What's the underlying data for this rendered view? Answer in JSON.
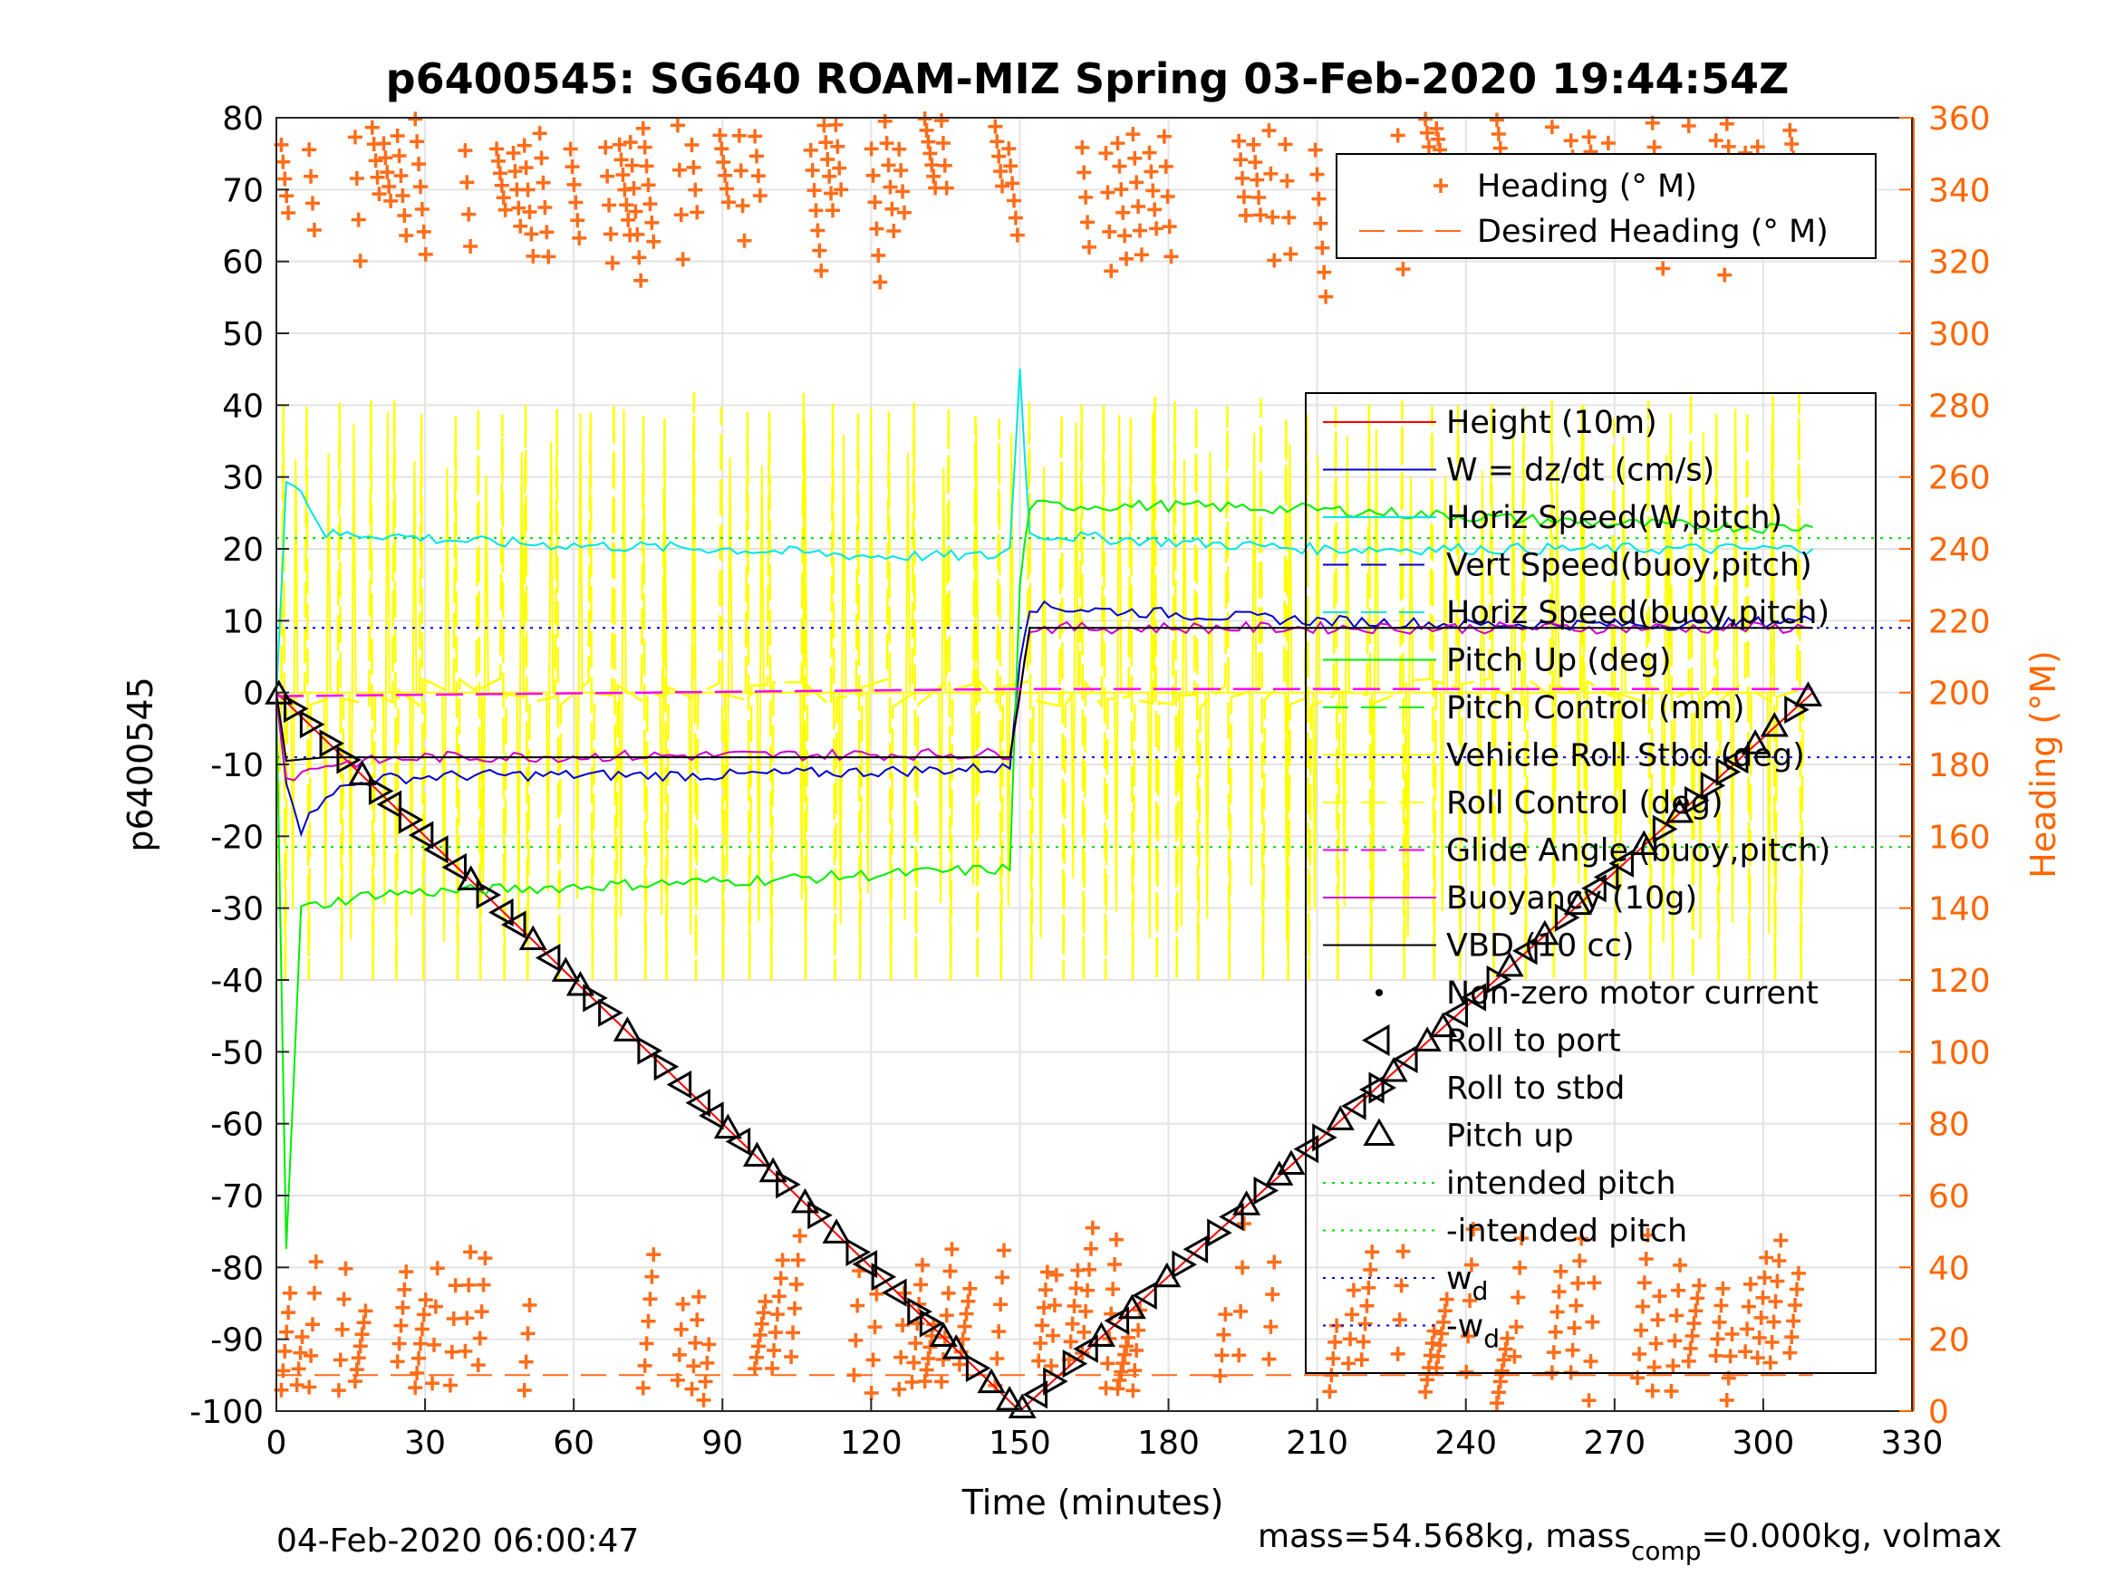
{
  "chart_data": {
    "type": "line",
    "title": "p6400545: SG640 ROAM-MIZ Spring 03-Feb-2020 19:44:54Z",
    "xlabel": "Time (minutes)",
    "ylabel_left": "p6400545",
    "ylabel_right": "Heading (°M)",
    "xlim": [
      0,
      330
    ],
    "ylim_left": [
      -100,
      80
    ],
    "ylim_right": [
      0,
      360
    ],
    "x_ticks": [
      "0",
      "30",
      "60",
      "90",
      "120",
      "150",
      "180",
      "210",
      "240",
      "270",
      "300",
      "330"
    ],
    "y_ticks_left": [
      "80",
      "70",
      "60",
      "50",
      "40",
      "30",
      "20",
      "10",
      "0",
      "-10",
      "-20",
      "-30",
      "-40",
      "-50",
      "-60",
      "-70",
      "-80",
      "-90",
      "-100"
    ],
    "y_ticks_right": [
      "360",
      "340",
      "320",
      "300",
      "280",
      "260",
      "240",
      "220",
      "200",
      "180",
      "160",
      "140",
      "120",
      "100",
      "80",
      "60",
      "40",
      "20",
      "0"
    ],
    "grid": true,
    "colors": {
      "height": "#ff0000",
      "w": "#0000cc",
      "horiz_speed_w": "#00e5e5",
      "pitch": "#00ee00",
      "yellow": "#ffff00",
      "glide": "#ff00ff",
      "buoyancy": "#cc00cc",
      "vbd": "#000000",
      "heading": "#ff6d1a",
      "intended": "#00dd00",
      "wd": "#0000ff"
    },
    "heading_legend": [
      {
        "label": "Heading (° M)",
        "style": "plus-marker"
      },
      {
        "label": "Desired Heading (° M)",
        "style": "dashed"
      }
    ],
    "legend": [
      {
        "label": "Height (10m)",
        "style": "line"
      },
      {
        "label": "W = dz/dt (cm/s)",
        "style": "line"
      },
      {
        "label": "Horiz Speed(W,pitch)",
        "style": "line"
      },
      {
        "label": "Vert Speed(buoy,pitch)",
        "style": "dashed"
      },
      {
        "label": "Horiz Speed(buoy,pitch)",
        "style": "dashed"
      },
      {
        "label": "Pitch Up (deg)",
        "style": "line"
      },
      {
        "label": "Pitch Control (mm)",
        "style": "dashed"
      },
      {
        "label": "Vehicle Roll Stbd (deg)",
        "style": "line"
      },
      {
        "label": "Roll Control (deg)",
        "style": "dashed"
      },
      {
        "label": "Glide Angle (buoy,pitch)",
        "style": "dashed"
      },
      {
        "label": "Buoyancy (10g)",
        "style": "line"
      },
      {
        "label": "VBD (10 cc)",
        "style": "line"
      },
      {
        "label": "Non-zero motor current",
        "style": "dot"
      },
      {
        "label": "Roll to port",
        "style": "tri-left"
      },
      {
        "label": "Roll to stbd",
        "style": "tri-right"
      },
      {
        "label": "Pitch up",
        "style": "tri-up"
      },
      {
        "label": "intended pitch",
        "style": "dotted"
      },
      {
        "label": "-intended pitch",
        "style": "dotted"
      },
      {
        "label": "w",
        "sub": "d",
        "style": "dotted"
      },
      {
        "label": "-w",
        "sub": "d",
        "style": "dotted"
      }
    ],
    "series": [
      {
        "name": "Height (10m)",
        "axis": "left",
        "x": [
          0,
          150,
          310
        ],
        "y": [
          0,
          -100,
          0
        ]
      },
      {
        "name": "W = dz/dt (cm/s)",
        "axis": "left",
        "x": [
          0,
          2,
          5,
          10,
          20,
          40,
          60,
          90,
          120,
          148,
          150,
          152,
          180,
          210,
          240,
          270,
          290,
          305,
          310
        ],
        "y": [
          0,
          -12,
          -19,
          -14,
          -12,
          -11.5,
          -11.5,
          -11.5,
          -11,
          -10.5,
          5,
          12,
          11,
          10,
          9.5,
          9.5,
          9.5,
          10,
          10
        ]
      },
      {
        "name": "Horiz Speed(W,pitch)",
        "axis": "left",
        "x": [
          0,
          2,
          5,
          10,
          20,
          40,
          60,
          90,
          120,
          145,
          148,
          150,
          152,
          180,
          210,
          240,
          270,
          300,
          310
        ],
        "y": [
          0,
          30,
          28,
          22,
          22,
          21,
          20.5,
          20,
          19,
          19,
          20,
          45,
          22,
          21,
          20,
          20,
          20,
          20,
          20
        ]
      },
      {
        "name": "Pitch Up (deg)",
        "axis": "left",
        "x": [
          0,
          2,
          5,
          20,
          60,
          100,
          148,
          150,
          152,
          180,
          210,
          240,
          270,
          300,
          310
        ],
        "y": [
          0,
          -78,
          -30,
          -28,
          -27,
          -26,
          -24.5,
          15,
          26,
          26,
          25.5,
          24.5,
          23.5,
          23,
          23
        ]
      },
      {
        "name": "Buoyancy (10g)",
        "axis": "left",
        "x": [
          0,
          2,
          10,
          30,
          148,
          150,
          152,
          310
        ],
        "y": [
          0,
          -12,
          -10,
          -9,
          -8.5,
          0,
          9,
          9
        ]
      },
      {
        "name": "VBD (10 cc)",
        "axis": "left",
        "x": [
          0,
          2,
          10,
          30,
          148,
          150,
          152,
          310
        ],
        "y": [
          0,
          -9.5,
          -9,
          -9,
          -9,
          0,
          9,
          9
        ]
      },
      {
        "name": "Glide Angle (buoy,pitch)",
        "axis": "left",
        "x": [
          0,
          150,
          310
        ],
        "y": [
          -0.5,
          0.5,
          0.5
        ]
      },
      {
        "name": "Heading (° M)",
        "axis": "right",
        "note": "plus markers scattered in two bands",
        "bands_deg": [
          [
            300,
            360
          ],
          [
            0,
            60
          ]
        ]
      },
      {
        "name": "Desired Heading (° M)",
        "axis": "right",
        "x": [
          0,
          310
        ],
        "y": [
          10,
          10
        ]
      }
    ],
    "reference_lines": {
      "intended_pitch": 21.5,
      "neg_intended_pitch": -21.5,
      "wd": 9,
      "neg_wd": -9
    }
  },
  "footer": {
    "timestamp": "04-Feb-2020 06:00:47",
    "mass_prefix": "mass=54.568kg, mass",
    "mass_sub": "comp",
    "mass_suffix": "=0.000kg, volmax"
  }
}
